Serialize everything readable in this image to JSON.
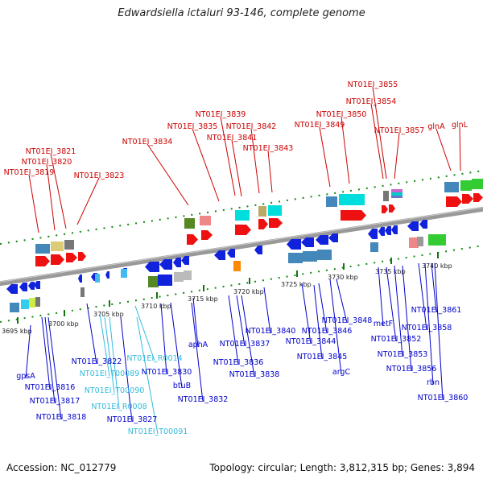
{
  "title": "Edwardsiella ictaluri 93-146, complete genome",
  "footer": {
    "accession": "Accession: NC_012779",
    "summary": "Topology: circular; Length: 3,812,315 bp; Genes: 3,894"
  },
  "ruler_ticks": [
    "3695 kbp",
    "3700 kbp",
    "3705 kbp",
    "3710 kbp",
    "3715 kbp",
    "3720 kbp",
    "3725 kbp",
    "3730 kbp",
    "3735 kbp",
    "3740 kbp"
  ],
  "top_labels": [
    "NT01EI_3855",
    "NT01EI_3854",
    "NT01EI_3850",
    "NT01EI_3857",
    "NT01EI_3849",
    "NT01EI_3839",
    "NT01EI_3835",
    "NT01EI_3842",
    "NT01EI_3841",
    "NT01EI_3843",
    "NT01EI_3834",
    "NT01EI_3821",
    "NT01EI_3820",
    "NT01EI_3819",
    "NT01EI_3823",
    "glnA",
    "glnL"
  ],
  "bottom_labels": [
    "gpsA",
    "NT01EI_3816",
    "NT01EI_3817",
    "NT01EI_3818",
    "NT01EI_3822",
    "NT01EI_R0014",
    "NT01EI_T00089",
    "NT01EI_3830",
    "NT01EI_T00090",
    "NT01EI_R0008",
    "NT01EI_3827",
    "NT01EI_T00091",
    "btuB",
    "aphA",
    "NT01EI_3832",
    "NT01EI_3837",
    "NT01EI_3836",
    "NT01EI_3838",
    "NT01EI_3840",
    "NT01EI_3844",
    "NT01EI_3846",
    "NT01EI_3845",
    "NT01EI_3848",
    "argC",
    "metF",
    "NT01EI_3852",
    "NT01EI_3853",
    "NT01EI_3856",
    "rbn",
    "NT01EI_3858",
    "NT01EI_3861",
    "NT01EI_3860"
  ],
  "colors": {
    "top_label_text": "#cc0000",
    "bottom_label_text": "#0000cc",
    "rna_label_text": "#33bbdd",
    "top_strand_gene": "#ee1111",
    "bottom_strand_gene": "#1122dd",
    "backbone": "#888888",
    "tick": "#117711"
  }
}
